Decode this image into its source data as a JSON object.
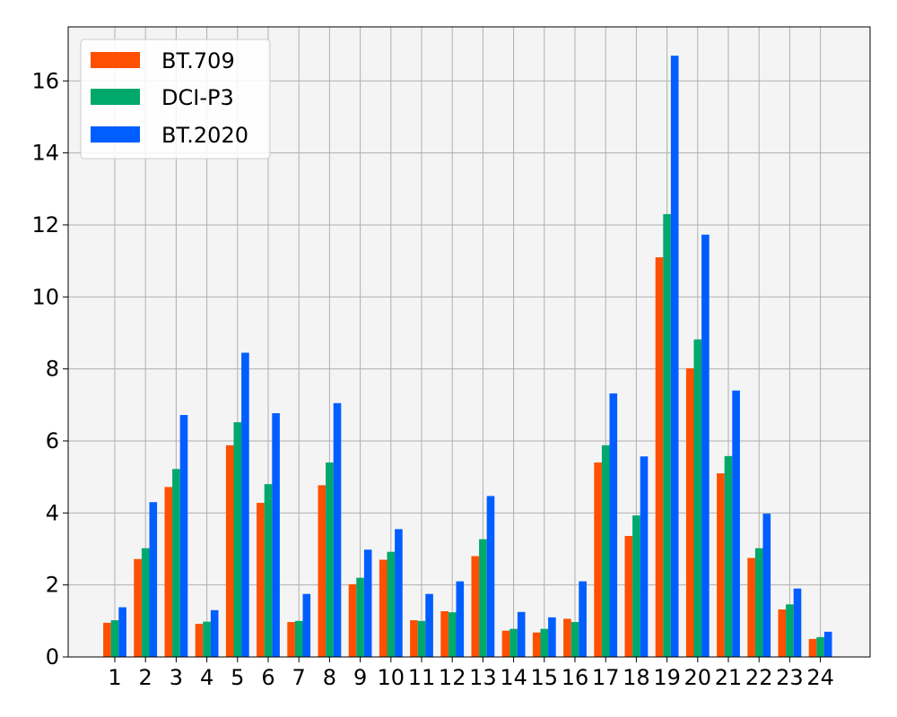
{
  "chart_data": {
    "type": "bar",
    "title": "",
    "xlabel": "",
    "ylabel": "",
    "categories": [
      "1",
      "2",
      "3",
      "4",
      "5",
      "6",
      "7",
      "8",
      "9",
      "10",
      "11",
      "12",
      "13",
      "14",
      "15",
      "16",
      "17",
      "18",
      "19",
      "20",
      "21",
      "22",
      "23",
      "24"
    ],
    "series": [
      {
        "name": "BT.709",
        "color": "#ff4f00",
        "values": [
          0.95,
          2.72,
          4.72,
          0.92,
          5.88,
          4.28,
          0.97,
          4.77,
          2.02,
          2.7,
          1.02,
          1.27,
          2.8,
          0.73,
          0.68,
          1.06,
          5.4,
          3.36,
          11.1,
          8.02,
          5.1,
          2.75,
          1.32,
          0.5
        ]
      },
      {
        "name": "DCI-P3",
        "color": "#00a86b",
        "values": [
          1.02,
          3.02,
          5.22,
          0.98,
          6.52,
          4.8,
          1.0,
          5.4,
          2.2,
          2.92,
          1.0,
          1.24,
          3.27,
          0.78,
          0.78,
          0.97,
          5.88,
          3.93,
          12.3,
          8.82,
          5.58,
          3.02,
          1.46,
          0.55
        ]
      },
      {
        "name": "BT.2020",
        "color": "#005eff",
        "values": [
          1.38,
          4.3,
          6.72,
          1.3,
          8.45,
          6.77,
          1.75,
          7.05,
          2.98,
          3.55,
          1.75,
          2.1,
          4.47,
          1.25,
          1.1,
          2.1,
          7.32,
          5.57,
          16.7,
          11.73,
          7.4,
          3.98,
          1.9,
          0.7
        ]
      }
    ],
    "ylim": [
      0,
      17.5
    ],
    "yticks": [
      "0",
      "2",
      "4",
      "6",
      "8",
      "10",
      "12",
      "14",
      "16"
    ],
    "grid": true,
    "legend_position": "top-left",
    "plot_background": "#f4f4f4",
    "grid_color": "#b0b0b0"
  }
}
